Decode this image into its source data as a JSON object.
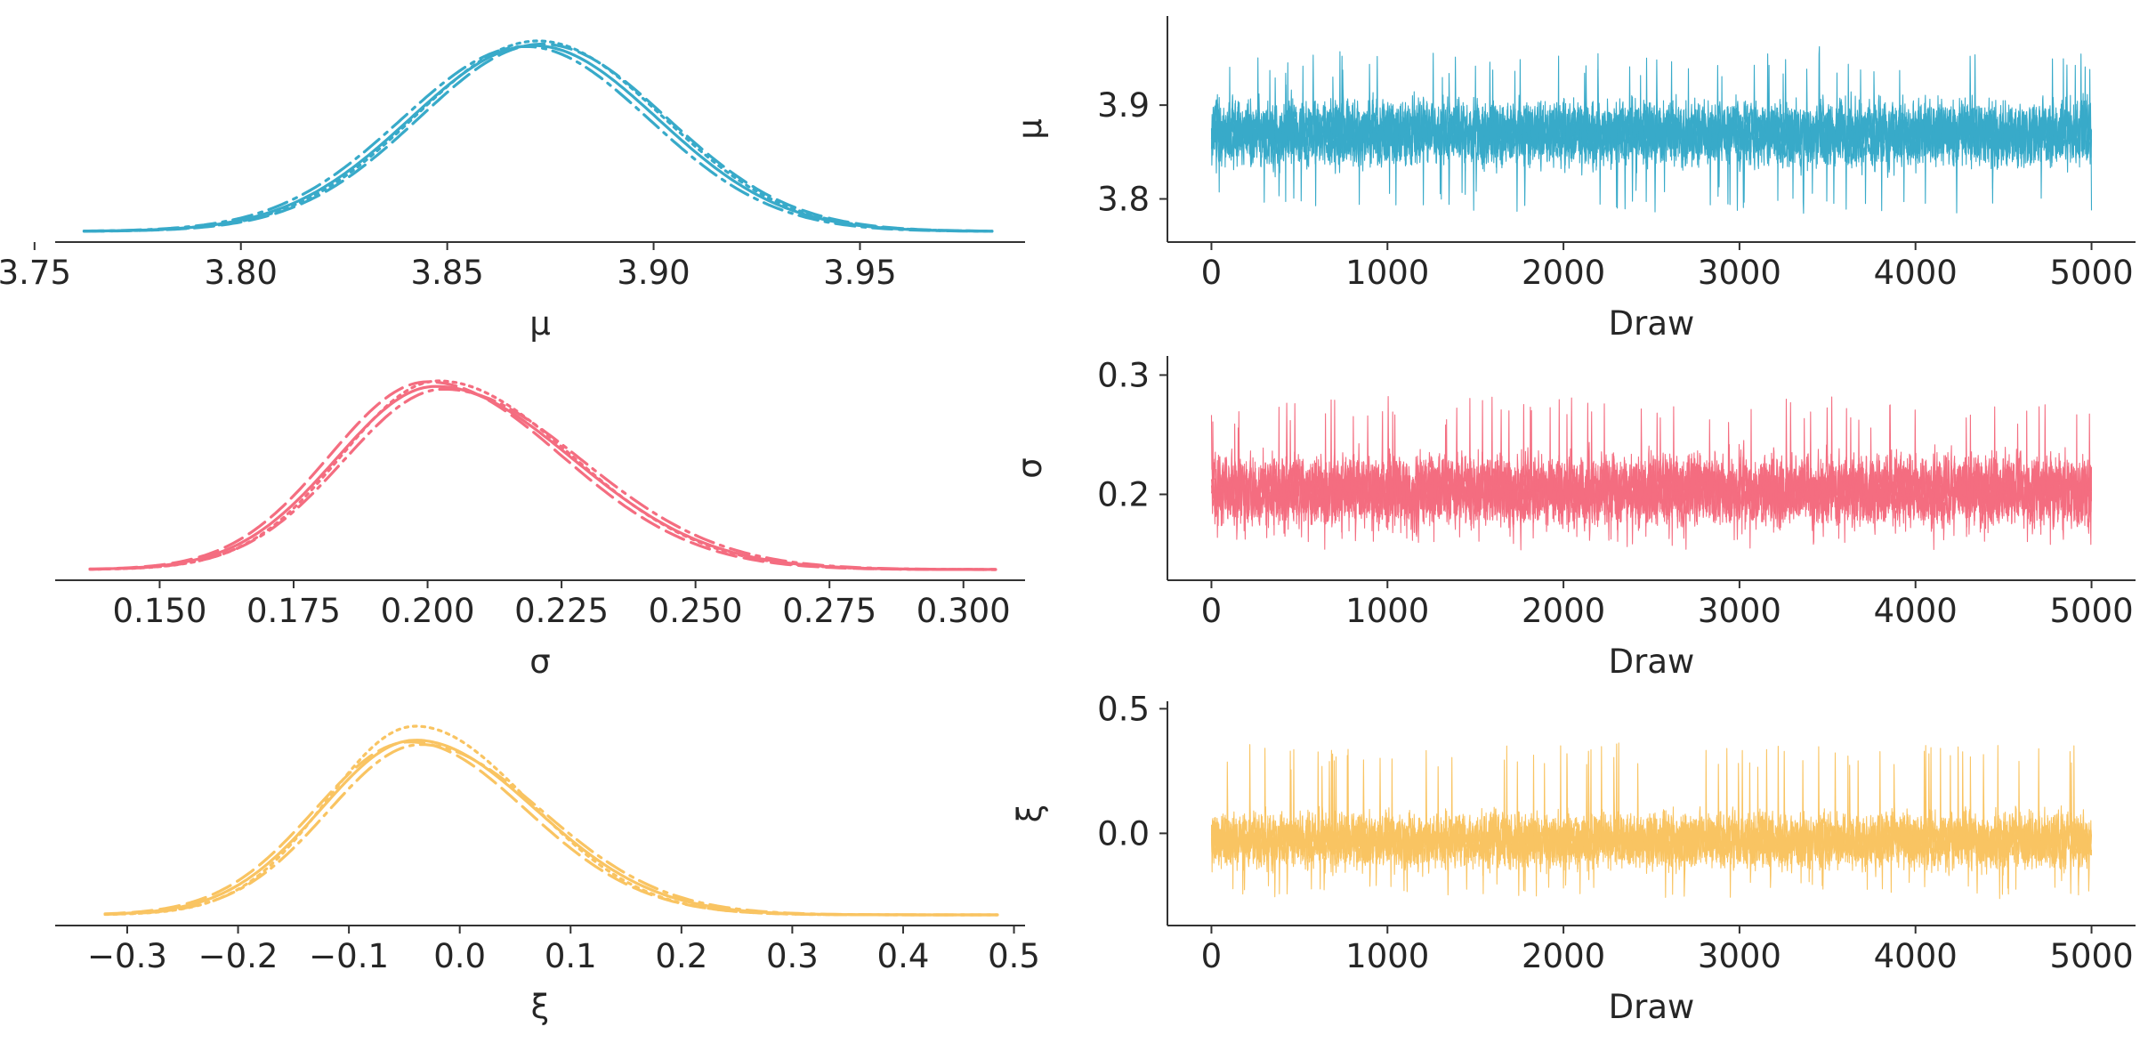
{
  "chart_data": [
    {
      "type": "line",
      "kind": "kde",
      "xlabel": "μ",
      "ylabel": "",
      "color": "#38aac9",
      "xlim": [
        3.755,
        3.99
      ],
      "xticks": [
        3.75,
        3.8,
        3.85,
        3.9,
        3.95
      ],
      "xtick_labels": [
        "3.75",
        "3.80",
        "3.85",
        "3.90",
        "3.95"
      ],
      "range": [
        3.762,
        3.982
      ],
      "series": [
        {
          "style": "solid",
          "mode": 3.871,
          "sd_left": 0.03,
          "sd_right": 0.03,
          "peak": 1.0
        },
        {
          "style": "dashed",
          "mode": 3.873,
          "sd_left": 0.0298,
          "sd_right": 0.0302,
          "peak": 1.008
        },
        {
          "style": "dashdot",
          "mode": 3.869,
          "sd_left": 0.0301,
          "sd_right": 0.0299,
          "peak": 0.995
        },
        {
          "style": "dotted",
          "mode": 3.872,
          "sd_left": 0.0297,
          "sd_right": 0.03,
          "peak": 1.025
        }
      ]
    },
    {
      "type": "line",
      "kind": "kde",
      "xlabel": "σ",
      "ylabel": "",
      "color": "#f46d80",
      "xlim": [
        0.1305,
        0.3115
      ],
      "xticks": [
        0.15,
        0.175,
        0.2,
        0.225,
        0.25,
        0.275,
        0.3
      ],
      "xtick_labels": [
        "0.150",
        "0.175",
        "0.200",
        "0.225",
        "0.250",
        "0.275",
        "0.300"
      ],
      "range": [
        0.137,
        0.306
      ],
      "series": [
        {
          "style": "solid",
          "mode": 0.2015,
          "sd_left": 0.0185,
          "sd_right": 0.0255,
          "peak": 1.0
        },
        {
          "style": "dashed",
          "mode": 0.2,
          "sd_left": 0.0183,
          "sd_right": 0.025,
          "peak": 1.025
        },
        {
          "style": "dashdot",
          "mode": 0.203,
          "sd_left": 0.0186,
          "sd_right": 0.0258,
          "peak": 0.985
        },
        {
          "style": "dotted",
          "mode": 0.202,
          "sd_left": 0.018,
          "sd_right": 0.0248,
          "peak": 1.03
        }
      ]
    },
    {
      "type": "line",
      "kind": "kde",
      "xlabel": "ξ",
      "ylabel": "",
      "color": "#f9c462",
      "xlim": [
        -0.365,
        0.51
      ],
      "xticks": [
        -0.3,
        -0.2,
        -0.1,
        0.0,
        0.1,
        0.2,
        0.3,
        0.4,
        0.5
      ],
      "xtick_labels": [
        "−0.3",
        "−0.2",
        "−0.1",
        "0.0",
        "0.1",
        "0.2",
        "0.3",
        "0.4",
        "0.5"
      ],
      "range": [
        -0.32,
        0.485
      ],
      "series": [
        {
          "style": "solid",
          "mode": -0.04,
          "sd_left": 0.085,
          "sd_right": 0.108,
          "peak": 1.0
        },
        {
          "style": "dashed",
          "mode": -0.045,
          "sd_left": 0.086,
          "sd_right": 0.105,
          "peak": 0.99
        },
        {
          "style": "dashdot",
          "mode": -0.035,
          "sd_left": 0.084,
          "sd_right": 0.11,
          "peak": 0.975
        },
        {
          "style": "dotted",
          "mode": -0.04,
          "sd_left": 0.08,
          "sd_right": 0.102,
          "peak": 1.08
        }
      ]
    },
    {
      "type": "line",
      "kind": "trace",
      "xlabel": "Draw",
      "ylabel": "μ",
      "color": "#38aac9",
      "xlim": [
        -250,
        5250
      ],
      "ylim": [
        3.754,
        3.995
      ],
      "xticks": [
        0,
        1000,
        2000,
        3000,
        4000,
        5000
      ],
      "xtick_labels": [
        "0",
        "1000",
        "2000",
        "3000",
        "4000",
        "5000"
      ],
      "yticks": [
        3.8,
        3.9
      ],
      "ytick_labels": [
        "3.8",
        "3.9"
      ],
      "draws": 5000,
      "center": 3.87,
      "typical_low": 3.81,
      "typical_high": 3.93,
      "min": 3.762,
      "max": 3.982,
      "chains": 4
    },
    {
      "type": "line",
      "kind": "trace",
      "xlabel": "Draw",
      "ylabel": "σ",
      "color": "#f46d80",
      "xlim": [
        -250,
        5250
      ],
      "ylim": [
        0.128,
        0.316
      ],
      "xticks": [
        0,
        1000,
        2000,
        3000,
        4000,
        5000
      ],
      "xtick_labels": [
        "0",
        "1000",
        "2000",
        "3000",
        "4000",
        "5000"
      ],
      "yticks": [
        0.2,
        0.3
      ],
      "ytick_labels": [
        "0.2",
        "0.3"
      ],
      "draws": 5000,
      "center": 0.203,
      "typical_low": 0.16,
      "typical_high": 0.262,
      "min": 0.14,
      "max": 0.306,
      "chains": 4
    },
    {
      "type": "line",
      "kind": "trace",
      "xlabel": "Draw",
      "ylabel": "ξ",
      "color": "#f9c462",
      "xlim": [
        -250,
        5250
      ],
      "ylim": [
        -0.37,
        0.53
      ],
      "xticks": [
        0,
        1000,
        2000,
        3000,
        4000,
        5000
      ],
      "xtick_labels": [
        "0",
        "1000",
        "2000",
        "3000",
        "4000",
        "5000"
      ],
      "yticks": [
        0.0,
        0.5
      ],
      "ytick_labels": [
        "0.0",
        "0.5"
      ],
      "draws": 5000,
      "center": -0.03,
      "typical_low": -0.2,
      "typical_high": 0.18,
      "min": -0.33,
      "max": 0.49,
      "chains": 4
    }
  ]
}
